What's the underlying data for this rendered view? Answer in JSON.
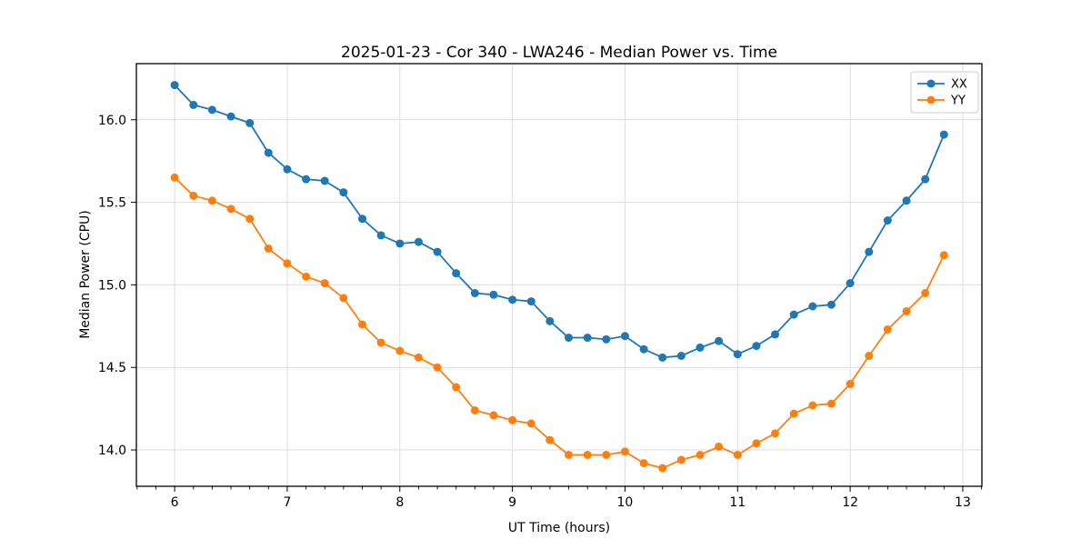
{
  "page": {
    "background": "#ffffff"
  },
  "chart_data": {
    "type": "line",
    "title": "2025-01-23 - Cor 340 - LWA246 - Median Power vs. Time",
    "xlabel": "UT Time (hours)",
    "ylabel": "Median Power (CPU)",
    "xlim": [
      5.66,
      13.17
    ],
    "ylim": [
      13.78,
      16.34
    ],
    "x_ticks": [
      6,
      7,
      8,
      9,
      10,
      11,
      12,
      13
    ],
    "x_tick_labels": [
      "6",
      "7",
      "8",
      "9",
      "10",
      "11",
      "12",
      "13"
    ],
    "x_minor_step": 0.16667,
    "y_ticks": [
      14.0,
      14.5,
      15.0,
      15.5,
      16.0
    ],
    "y_tick_labels": [
      "14.0",
      "14.5",
      "15.0",
      "15.5",
      "16.0"
    ],
    "grid": true,
    "legend": {
      "position": "upper right",
      "entries": [
        "XX",
        "YY"
      ]
    },
    "x": [
      6,
      6.167,
      6.333,
      6.5,
      6.667,
      6.833,
      7,
      7.167,
      7.333,
      7.5,
      7.667,
      7.833,
      8,
      8.167,
      8.333,
      8.5,
      8.667,
      8.833,
      9,
      9.167,
      9.333,
      9.5,
      9.667,
      9.833,
      10,
      10.167,
      10.333,
      10.5,
      10.667,
      10.833,
      11,
      11.167,
      11.333,
      11.5,
      11.667,
      11.833,
      12,
      12.167,
      12.333,
      12.5,
      12.667,
      12.833
    ],
    "series": [
      {
        "name": "XX",
        "color": "#1f77b4",
        "marker": "circle",
        "values": [
          16.21,
          16.09,
          16.06,
          16.02,
          15.98,
          15.8,
          15.7,
          15.64,
          15.63,
          15.56,
          15.4,
          15.3,
          15.25,
          15.26,
          15.2,
          15.07,
          14.95,
          14.94,
          14.91,
          14.9,
          14.78,
          14.68,
          14.68,
          14.67,
          14.69,
          14.61,
          14.56,
          14.57,
          14.62,
          14.66,
          14.58,
          14.63,
          14.7,
          14.82,
          14.87,
          14.88,
          15.01,
          15.2,
          15.39,
          15.51,
          15.64,
          15.91
        ]
      },
      {
        "name": "YY",
        "color": "#ff7f0e",
        "marker": "circle",
        "values": [
          15.65,
          15.54,
          15.51,
          15.46,
          15.4,
          15.22,
          15.13,
          15.05,
          15.01,
          14.92,
          14.76,
          14.65,
          14.6,
          14.56,
          14.5,
          14.38,
          14.24,
          14.21,
          14.18,
          14.16,
          14.06,
          13.97,
          13.97,
          13.97,
          13.99,
          13.92,
          13.89,
          13.94,
          13.97,
          14.02,
          13.97,
          14.04,
          14.1,
          14.22,
          14.27,
          14.28,
          14.4,
          14.57,
          14.73,
          14.84,
          14.95,
          15.18
        ]
      }
    ],
    "styles": {
      "grid_color": "#dedede",
      "spine_color": "#000000",
      "text_color": "#000000",
      "legend_border": "#cccccc",
      "legend_bg": "#ffffff"
    }
  }
}
